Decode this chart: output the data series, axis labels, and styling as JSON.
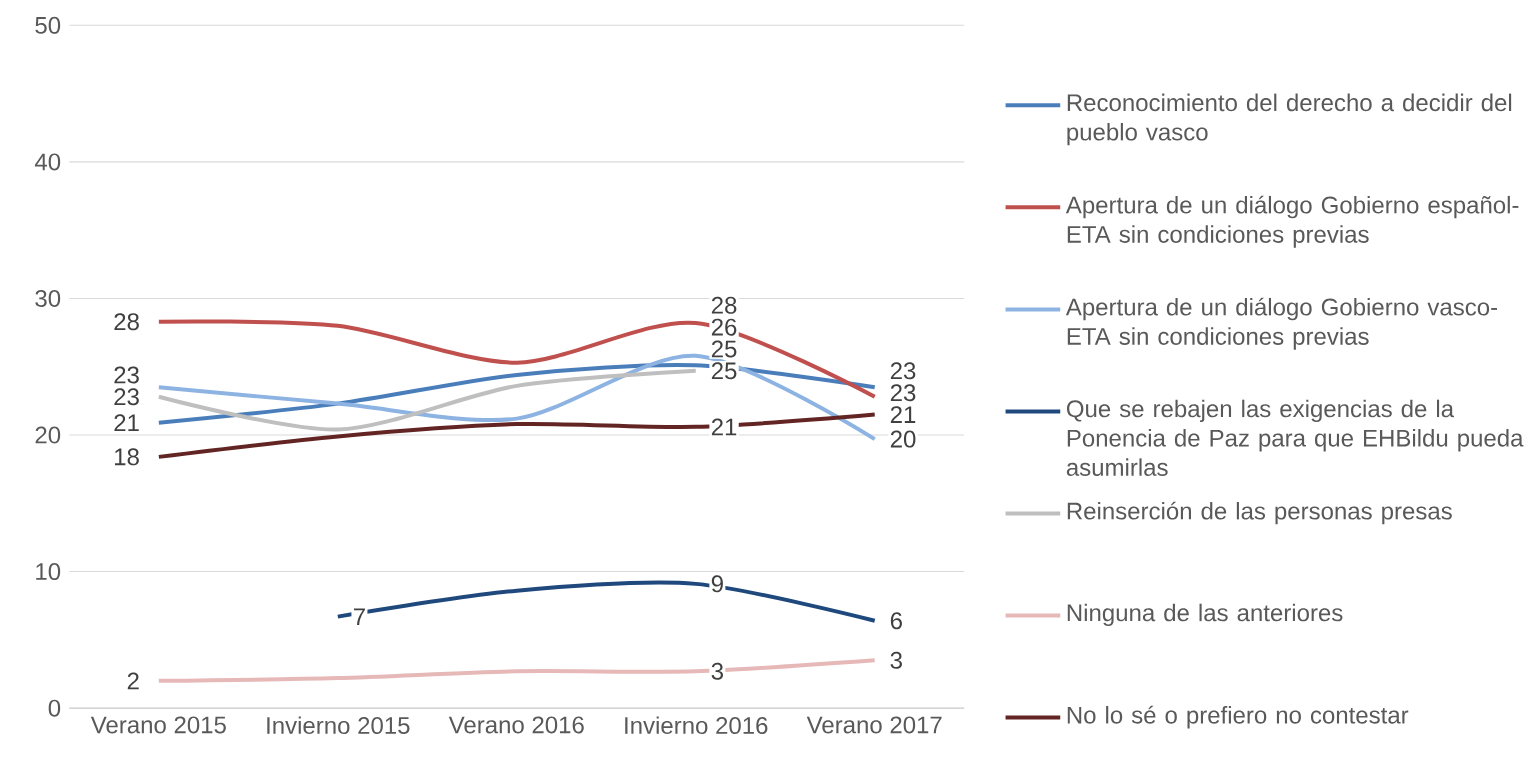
{
  "chart_data": {
    "type": "line",
    "categories": [
      "Verano 2015",
      "Invierno 2015",
      "Verano 2016",
      "Invierno 2016",
      "Verano 2017"
    ],
    "ylim": [
      0,
      50
    ],
    "yticks": [
      0,
      10,
      20,
      30,
      40,
      50
    ],
    "grid": "y",
    "legend": "right",
    "marker": "none",
    "line_style": "solid",
    "series": [
      {
        "name": "Reconocimiento del derecho a decidir del pueblo vasco",
        "color": "#4a7ebb",
        "values": [
          20.9,
          22.3,
          24.4,
          25.1,
          23.5
        ],
        "value_labels": [
          "21",
          null,
          null,
          "25",
          "23"
        ]
      },
      {
        "name": "Apertura de un diálogo Gobierno español-ETA sin condiciones previas",
        "color": "#c0504d",
        "values": [
          28.3,
          28.0,
          25.3,
          28.2,
          22.8
        ],
        "value_labels": [
          "28",
          null,
          null,
          "28",
          "23"
        ]
      },
      {
        "name": "Apertura de un diálogo Gobierno vasco-ETA sin condiciones previas",
        "color": "#8db3e2",
        "values": [
          23.5,
          22.3,
          21.2,
          25.8,
          19.7
        ],
        "value_labels": [
          "23",
          null,
          null,
          "26",
          "20"
        ]
      },
      {
        "name": "Que se rebajen las exigencias de la Ponencia de Paz para que EHBildu pueda asumirlas",
        "color": "#1f497d",
        "values": [
          null,
          6.7,
          8.6,
          9.1,
          6.4
        ],
        "value_labels": [
          null,
          "7",
          null,
          "9",
          "6"
        ]
      },
      {
        "name": "Reinserción de las personas presas",
        "color": "#bfbfbf",
        "values": [
          22.8,
          20.4,
          23.6,
          24.7,
          null
        ],
        "value_labels": [
          "23",
          null,
          null,
          "25",
          null
        ]
      },
      {
        "name": "Ninguna de las anteriores",
        "color": "#e6b9b8",
        "values": [
          2.0,
          2.2,
          2.7,
          2.7,
          3.5
        ],
        "value_labels": [
          "2",
          null,
          null,
          "3",
          "3"
        ]
      },
      {
        "name": "No lo sé o prefiero no contestar",
        "color": "#632523",
        "values": [
          18.4,
          19.9,
          20.8,
          20.6,
          21.5
        ],
        "value_labels": [
          "18",
          null,
          null,
          "21",
          "21"
        ]
      }
    ]
  }
}
